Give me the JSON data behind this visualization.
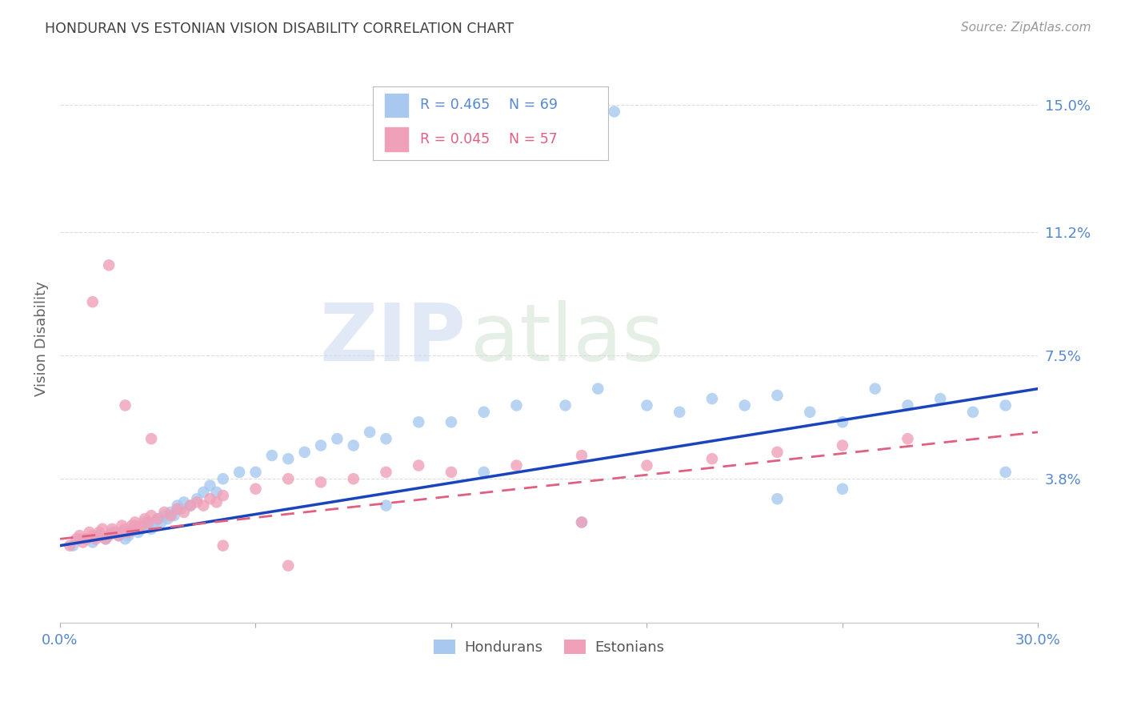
{
  "title": "HONDURAN VS ESTONIAN VISION DISABILITY CORRELATION CHART",
  "source": "Source: ZipAtlas.com",
  "ylabel": "Vision Disability",
  "watermark_zip": "ZIP",
  "watermark_atlas": "atlas",
  "xlim": [
    0.0,
    0.3
  ],
  "ylim": [
    -0.005,
    0.165
  ],
  "xticks": [
    0.0,
    0.06,
    0.12,
    0.18,
    0.24,
    0.3
  ],
  "xtick_labels": [
    "0.0%",
    "",
    "",
    "",
    "",
    "30.0%"
  ],
  "ytick_values": [
    0.038,
    0.075,
    0.112,
    0.15
  ],
  "ytick_labels": [
    "3.8%",
    "7.5%",
    "11.2%",
    "15.0%"
  ],
  "honduran_color": "#a8c8f0",
  "estonian_color": "#f0a0b8",
  "line_blue_color": "#1a44bb",
  "line_pink_color": "#e06080",
  "tick_color": "#5588cc",
  "title_color": "#404040",
  "source_color": "#999999",
  "grid_color": "#dddddd",
  "blue_scatter_x": [
    0.004,
    0.006,
    0.008,
    0.01,
    0.012,
    0.014,
    0.016,
    0.018,
    0.019,
    0.02,
    0.021,
    0.022,
    0.023,
    0.024,
    0.025,
    0.026,
    0.027,
    0.028,
    0.029,
    0.03,
    0.031,
    0.032,
    0.033,
    0.034,
    0.035,
    0.036,
    0.037,
    0.038,
    0.04,
    0.042,
    0.044,
    0.046,
    0.048,
    0.05,
    0.055,
    0.06,
    0.065,
    0.07,
    0.075,
    0.08,
    0.085,
    0.09,
    0.095,
    0.1,
    0.11,
    0.12,
    0.13,
    0.14,
    0.155,
    0.165,
    0.18,
    0.19,
    0.2,
    0.21,
    0.22,
    0.23,
    0.24,
    0.25,
    0.26,
    0.27,
    0.28,
    0.29,
    0.13,
    0.16,
    0.22,
    0.24,
    0.29,
    0.1,
    0.17
  ],
  "blue_scatter_y": [
    0.018,
    0.02,
    0.02,
    0.019,
    0.021,
    0.02,
    0.022,
    0.021,
    0.022,
    0.02,
    0.021,
    0.023,
    0.024,
    0.022,
    0.023,
    0.025,
    0.024,
    0.023,
    0.025,
    0.026,
    0.025,
    0.027,
    0.026,
    0.028,
    0.027,
    0.03,
    0.029,
    0.031,
    0.03,
    0.032,
    0.034,
    0.036,
    0.034,
    0.038,
    0.04,
    0.04,
    0.045,
    0.044,
    0.046,
    0.048,
    0.05,
    0.048,
    0.052,
    0.05,
    0.055,
    0.055,
    0.058,
    0.06,
    0.06,
    0.065,
    0.06,
    0.058,
    0.062,
    0.06,
    0.063,
    0.058,
    0.055,
    0.065,
    0.06,
    0.062,
    0.058,
    0.06,
    0.04,
    0.025,
    0.032,
    0.035,
    0.04,
    0.03,
    0.148
  ],
  "pink_scatter_x": [
    0.003,
    0.005,
    0.006,
    0.007,
    0.008,
    0.009,
    0.01,
    0.011,
    0.012,
    0.013,
    0.014,
    0.015,
    0.016,
    0.017,
    0.018,
    0.019,
    0.02,
    0.021,
    0.022,
    0.023,
    0.024,
    0.025,
    0.026,
    0.027,
    0.028,
    0.03,
    0.032,
    0.034,
    0.036,
    0.038,
    0.04,
    0.042,
    0.044,
    0.046,
    0.048,
    0.05,
    0.06,
    0.07,
    0.08,
    0.09,
    0.1,
    0.11,
    0.12,
    0.14,
    0.16,
    0.18,
    0.2,
    0.22,
    0.24,
    0.26,
    0.01,
    0.015,
    0.02,
    0.028,
    0.05,
    0.07,
    0.16
  ],
  "pink_scatter_y": [
    0.018,
    0.02,
    0.021,
    0.019,
    0.02,
    0.022,
    0.021,
    0.02,
    0.022,
    0.023,
    0.02,
    0.021,
    0.023,
    0.022,
    0.021,
    0.024,
    0.023,
    0.022,
    0.024,
    0.025,
    0.023,
    0.024,
    0.026,
    0.025,
    0.027,
    0.026,
    0.028,
    0.027,
    0.029,
    0.028,
    0.03,
    0.031,
    0.03,
    0.032,
    0.031,
    0.033,
    0.035,
    0.038,
    0.037,
    0.038,
    0.04,
    0.042,
    0.04,
    0.042,
    0.045,
    0.042,
    0.044,
    0.046,
    0.048,
    0.05,
    0.091,
    0.102,
    0.06,
    0.05,
    0.018,
    0.012,
    0.025
  ],
  "blue_line_x": [
    0.0,
    0.3
  ],
  "blue_line_y": [
    0.018,
    0.065
  ],
  "pink_line_x": [
    0.0,
    0.3
  ],
  "pink_line_y": [
    0.02,
    0.052
  ],
  "legend_items": [
    {
      "color": "#a8c8f0",
      "r_text": "R = 0.465",
      "n_text": "N = 69",
      "text_color": "#5588cc"
    },
    {
      "color": "#f0a0b8",
      "r_text": "R = 0.045",
      "n_text": "N = 57",
      "text_color": "#e06080"
    }
  ],
  "bottom_legend": [
    {
      "color": "#a8c8f0",
      "label": "Hondurans"
    },
    {
      "color": "#f0a0b8",
      "label": "Estonians"
    }
  ]
}
